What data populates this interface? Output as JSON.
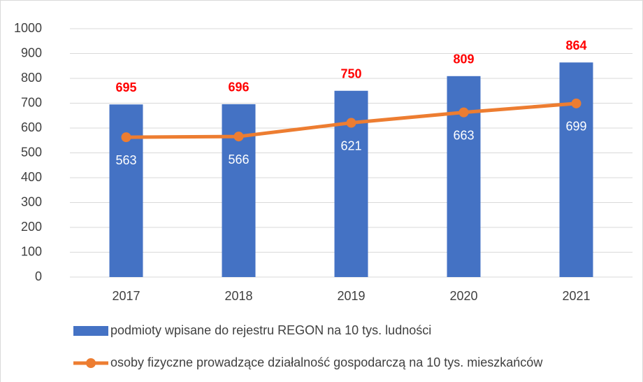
{
  "chart_data": {
    "type": "bar",
    "categories": [
      "2017",
      "2018",
      "2019",
      "2020",
      "2021"
    ],
    "series": [
      {
        "name": "podmioty wpisane do rejestru REGON na 10 tys. ludności",
        "type": "bar",
        "color": "#4472c4",
        "label_color": "#ff0000",
        "values": [
          695,
          696,
          750,
          809,
          864
        ]
      },
      {
        "name": "osoby fizyczne prowadzące działalność gospodarczą na 10 tys. mieszkańców",
        "type": "line",
        "color": "#ed7d31",
        "label_color": "#ffffff",
        "values": [
          563,
          566,
          621,
          663,
          699
        ]
      }
    ],
    "ylim": [
      0,
      1000
    ],
    "yticks": [
      0,
      100,
      200,
      300,
      400,
      500,
      600,
      700,
      800,
      900,
      1000
    ],
    "grid": true,
    "legend": "bottom"
  }
}
